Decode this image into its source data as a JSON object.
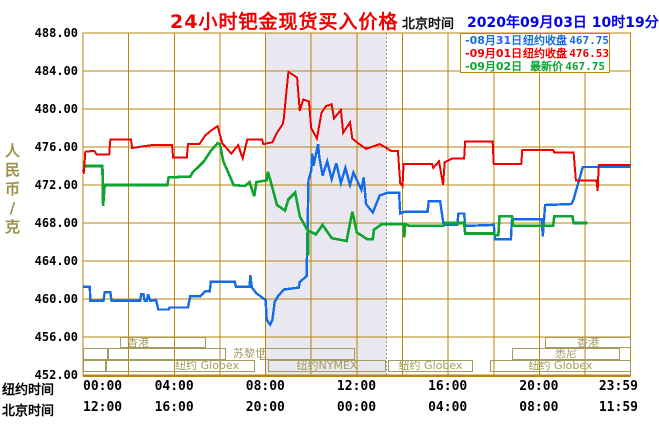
{
  "header": {
    "title": "24小时钯金现货买入价格",
    "time_zone_label": "北京时间",
    "datetime": "2020年09月03日 10时19分"
  },
  "y_axis": {
    "unit_chars": [
      "人",
      "民",
      "币",
      "/",
      "克"
    ],
    "labels": [
      "488.00",
      "484.00",
      "480.00",
      "476.00",
      "472.00",
      "468.00",
      "464.00",
      "460.00",
      "456.00",
      "452.00"
    ]
  },
  "x_axis": {
    "row1_label": "纽约时间",
    "row2_label": "北京时间",
    "row1_ticks": [
      "00:00",
      "04:00",
      "08:00",
      "12:00",
      "16:00",
      "20:00",
      "23:59"
    ],
    "row2_ticks": [
      "12:00",
      "16:00",
      "20:00",
      "00:00",
      "04:00",
      "08:00",
      "11:59"
    ]
  },
  "legend": [
    {
      "date": "-08月31日",
      "name": "纽约收盘",
      "value": "467.75",
      "color": "#146BE6"
    },
    {
      "date": "-09月01日",
      "name": "纽约收盘",
      "value": "476.53",
      "color": "#EE0000"
    },
    {
      "date": "-09月02日",
      "name": "最新价",
      "value": "467.75",
      "color": "#0FA32F"
    }
  ],
  "sessions": {
    "color": "#A39B5F",
    "rows": [
      {
        "top": 337,
        "height": 11,
        "items": [
          {
            "x": 120,
            "w": 86,
            "label": "香港",
            "align": "left"
          },
          {
            "x": 545,
            "w": 86,
            "label": "香港",
            "align": "center"
          }
        ]
      },
      {
        "top": 348,
        "height": 12,
        "items": [
          {
            "x": 83,
            "w": 25,
            "label": ""
          },
          {
            "x": 108,
            "w": 118,
            "label": ""
          },
          {
            "x": 226,
            "w": 34,
            "label": "苏黎世",
            "align": "left",
            "noborder": true
          },
          {
            "x": 260,
            "w": 95,
            "label": ""
          },
          {
            "x": 512,
            "w": 108,
            "label": "悉尼",
            "align": "center"
          }
        ]
      },
      {
        "top": 360,
        "height": 12,
        "items": [
          {
            "x": 83,
            "w": 23,
            "label": ""
          },
          {
            "x": 106,
            "w": 149,
            "label": "纽约 Globex",
            "align": "right"
          },
          {
            "x": 268,
            "w": 118,
            "label": "纽约NYMEX",
            "align": "center"
          },
          {
            "x": 388,
            "w": 85,
            "label": "纽约 Globex",
            "align": "center"
          },
          {
            "x": 490,
            "w": 141,
            "label": "纽约 Globex",
            "align": "center"
          }
        ]
      }
    ]
  },
  "colors": {
    "grid": "#B8860B",
    "band": "#E9E7EF",
    "band_edge": "#9A9A9A",
    "title_red": "#F00000",
    "datetime_blue": "#0000EE",
    "y_unit": "#9C9048"
  },
  "chart_data": {
    "type": "line",
    "title": "24小时钯金现货买入价格",
    "ylabel": "人民币/克",
    "ylim": [
      452,
      488
    ],
    "y_gridline_step": 4,
    "x_hours": [
      0,
      24
    ],
    "x_gridline_every_h": 2,
    "band": {
      "start_h": 8.0,
      "end_h": 13.3,
      "note": "纽约NYMEX session shading"
    },
    "series": [
      {
        "name": "08月31日",
        "close_label": "纽约收盘",
        "close": 467.75,
        "color": "#146BE6",
        "width": 2.4,
        "points": [
          [
            0,
            461.3
          ],
          [
            0.3,
            461.3
          ],
          [
            0.32,
            459.8
          ],
          [
            0.9,
            459.8
          ],
          [
            0.95,
            460.7
          ],
          [
            1.2,
            460.7
          ],
          [
            1.25,
            459.8
          ],
          [
            2.5,
            459.8
          ],
          [
            2.55,
            460.5
          ],
          [
            2.65,
            460.5
          ],
          [
            2.7,
            459.8
          ],
          [
            2.8,
            459.8
          ],
          [
            2.85,
            460.5
          ],
          [
            2.95,
            459.8
          ],
          [
            3.2,
            459.9
          ],
          [
            3.3,
            458.9
          ],
          [
            3.75,
            458.9
          ],
          [
            3.8,
            459.1
          ],
          [
            4.6,
            459.1
          ],
          [
            4.7,
            460.3
          ],
          [
            5.15,
            460.3
          ],
          [
            5.35,
            460.8
          ],
          [
            5.55,
            460.8
          ],
          [
            5.6,
            461.8
          ],
          [
            6.65,
            461.8
          ],
          [
            6.7,
            461.3
          ],
          [
            7.3,
            461.3
          ],
          [
            7.33,
            462.5
          ],
          [
            7.4,
            461.2
          ],
          [
            7.6,
            460.6
          ],
          [
            8.0,
            459.9
          ],
          [
            8.05,
            457.8
          ],
          [
            8.2,
            457.3
          ],
          [
            8.3,
            457.8
          ],
          [
            8.4,
            459.7
          ],
          [
            8.55,
            460.3
          ],
          [
            8.8,
            461.0
          ],
          [
            9.45,
            461.2
          ],
          [
            9.5,
            461.8
          ],
          [
            9.75,
            462.3
          ],
          [
            9.8,
            462.4
          ],
          [
            9.88,
            472.5
          ],
          [
            10.0,
            473.5
          ],
          [
            10.05,
            475.3
          ],
          [
            10.1,
            474.0
          ],
          [
            10.3,
            476.3
          ],
          [
            10.35,
            475.0
          ],
          [
            10.5,
            473.0
          ],
          [
            10.7,
            474.5
          ],
          [
            10.9,
            472.6
          ],
          [
            11.1,
            474.3
          ],
          [
            11.3,
            472.2
          ],
          [
            11.5,
            473.8
          ],
          [
            11.7,
            472.0
          ],
          [
            11.85,
            473.3
          ],
          [
            12.2,
            471.5
          ],
          [
            12.3,
            472.8
          ],
          [
            12.4,
            470.0
          ],
          [
            12.7,
            469.1
          ],
          [
            13.0,
            470.9
          ],
          [
            13.35,
            471.2
          ],
          [
            13.85,
            471.2
          ],
          [
            13.9,
            469.0
          ],
          [
            14.1,
            469.2
          ],
          [
            15.1,
            469.2
          ],
          [
            15.15,
            470.3
          ],
          [
            15.65,
            470.3
          ],
          [
            15.8,
            467.8
          ],
          [
            16.4,
            467.8
          ],
          [
            16.45,
            469.0
          ],
          [
            16.7,
            469.0
          ],
          [
            16.75,
            467.7
          ],
          [
            18.0,
            467.8
          ],
          [
            18.05,
            466.3
          ],
          [
            18.75,
            466.3
          ],
          [
            18.8,
            468.4
          ],
          [
            20.1,
            468.4
          ],
          [
            20.15,
            466.6
          ],
          [
            20.25,
            469.9
          ],
          [
            21.4,
            470.0
          ],
          [
            21.5,
            470.5
          ],
          [
            21.9,
            473.9
          ],
          [
            24,
            473.9
          ]
        ]
      },
      {
        "name": "09月02日",
        "close_label": "最新价",
        "close": 467.75,
        "color": "#0FA32F",
        "width": 2.6,
        "points": [
          [
            0,
            474.0
          ],
          [
            0.85,
            474.0
          ],
          [
            0.88,
            469.8
          ],
          [
            0.95,
            472.0
          ],
          [
            3.7,
            472.0
          ],
          [
            3.75,
            472.8
          ],
          [
            4.7,
            472.9
          ],
          [
            4.8,
            473.3
          ],
          [
            5.3,
            474.5
          ],
          [
            5.6,
            475.6
          ],
          [
            5.9,
            476.4
          ],
          [
            6.0,
            476.3
          ],
          [
            6.15,
            474.5
          ],
          [
            6.35,
            473.4
          ],
          [
            6.6,
            472.0
          ],
          [
            7.1,
            471.9
          ],
          [
            7.3,
            472.3
          ],
          [
            7.5,
            470.8
          ],
          [
            7.6,
            472.3
          ],
          [
            8.05,
            472.5
          ],
          [
            8.1,
            473.4
          ],
          [
            8.2,
            472.6
          ],
          [
            8.5,
            469.9
          ],
          [
            8.85,
            469.3
          ],
          [
            9.0,
            470.5
          ],
          [
            9.3,
            471.2
          ],
          [
            9.5,
            468.7
          ],
          [
            9.8,
            467.4
          ],
          [
            9.84,
            467.4
          ],
          [
            9.86,
            464.6
          ],
          [
            9.88,
            467.2
          ],
          [
            10.2,
            466.8
          ],
          [
            10.5,
            467.8
          ],
          [
            10.9,
            466.4
          ],
          [
            11.55,
            466.1
          ],
          [
            11.8,
            469.2
          ],
          [
            12.0,
            467.0
          ],
          [
            12.45,
            466.3
          ],
          [
            12.7,
            466.3
          ],
          [
            12.75,
            467.3
          ],
          [
            13.1,
            467.9
          ],
          [
            14.05,
            467.9
          ],
          [
            14.08,
            466.5
          ],
          [
            14.12,
            467.9
          ],
          [
            14.3,
            467.7
          ],
          [
            15.8,
            467.7
          ],
          [
            15.85,
            468.0
          ],
          [
            16.7,
            468.0
          ],
          [
            16.75,
            466.9
          ],
          [
            18.0,
            466.9
          ],
          [
            18.05,
            466.7
          ],
          [
            18.2,
            466.7
          ],
          [
            18.25,
            468.7
          ],
          [
            18.8,
            468.7
          ],
          [
            18.85,
            467.7
          ],
          [
            20.6,
            467.7
          ],
          [
            20.65,
            468.7
          ],
          [
            21.45,
            468.7
          ],
          [
            21.5,
            468.0
          ],
          [
            22.1,
            468.0
          ]
        ]
      },
      {
        "name": "09月01日",
        "close_label": "纽约收盘",
        "close": 476.53,
        "color": "#EE0000",
        "width": 2,
        "points": [
          [
            0,
            473.6
          ],
          [
            0.04,
            473.2
          ],
          [
            0.1,
            475.5
          ],
          [
            0.5,
            475.6
          ],
          [
            0.6,
            475.2
          ],
          [
            1.15,
            475.2
          ],
          [
            1.2,
            476.8
          ],
          [
            2.1,
            476.8
          ],
          [
            2.15,
            475.9
          ],
          [
            3.0,
            476.2
          ],
          [
            3.9,
            476.2
          ],
          [
            3.95,
            474.9
          ],
          [
            4.55,
            474.9
          ],
          [
            4.6,
            476.3
          ],
          [
            5.1,
            476.3
          ],
          [
            5.35,
            477.2
          ],
          [
            5.65,
            477.8
          ],
          [
            5.9,
            478.2
          ],
          [
            6.1,
            476.4
          ],
          [
            6.5,
            475.3
          ],
          [
            6.8,
            476.2
          ],
          [
            7.0,
            474.8
          ],
          [
            7.2,
            476.8
          ],
          [
            7.85,
            476.8
          ],
          [
            7.9,
            476.3
          ],
          [
            8.3,
            476.5
          ],
          [
            8.5,
            477.5
          ],
          [
            8.75,
            478.4
          ],
          [
            8.8,
            479.0
          ],
          [
            9.0,
            483.9
          ],
          [
            9.2,
            483.6
          ],
          [
            9.38,
            483.3
          ],
          [
            9.5,
            479.8
          ],
          [
            9.65,
            481.0
          ],
          [
            9.9,
            480.8
          ],
          [
            10.0,
            478.0
          ],
          [
            10.25,
            476.9
          ],
          [
            10.45,
            479.6
          ],
          [
            10.65,
            480.3
          ],
          [
            10.9,
            480.5
          ],
          [
            11.0,
            479.0
          ],
          [
            11.3,
            479.9
          ],
          [
            11.4,
            477.5
          ],
          [
            11.7,
            478.6
          ],
          [
            11.8,
            476.9
          ],
          [
            12.0,
            476.5
          ],
          [
            12.4,
            475.8
          ],
          [
            13.0,
            476.3
          ],
          [
            13.5,
            475.6
          ],
          [
            13.8,
            475.6
          ],
          [
            13.9,
            472.2
          ],
          [
            14.0,
            471.9
          ],
          [
            14.05,
            474.2
          ],
          [
            15.3,
            474.2
          ],
          [
            15.35,
            473.8
          ],
          [
            15.6,
            474.5
          ],
          [
            15.78,
            472.0
          ],
          [
            15.85,
            474.4
          ],
          [
            16.2,
            474.8
          ],
          [
            16.7,
            474.8
          ],
          [
            16.75,
            476.6
          ],
          [
            17.95,
            476.6
          ],
          [
            18.0,
            474.2
          ],
          [
            19.2,
            474.2
          ],
          [
            19.25,
            475.7
          ],
          [
            20.6,
            475.7
          ],
          [
            20.65,
            475.4
          ],
          [
            21.5,
            475.4
          ],
          [
            21.6,
            472.5
          ],
          [
            22.5,
            472.5
          ],
          [
            22.55,
            471.4
          ],
          [
            22.6,
            474.1
          ],
          [
            24,
            474.1
          ]
        ]
      }
    ]
  }
}
